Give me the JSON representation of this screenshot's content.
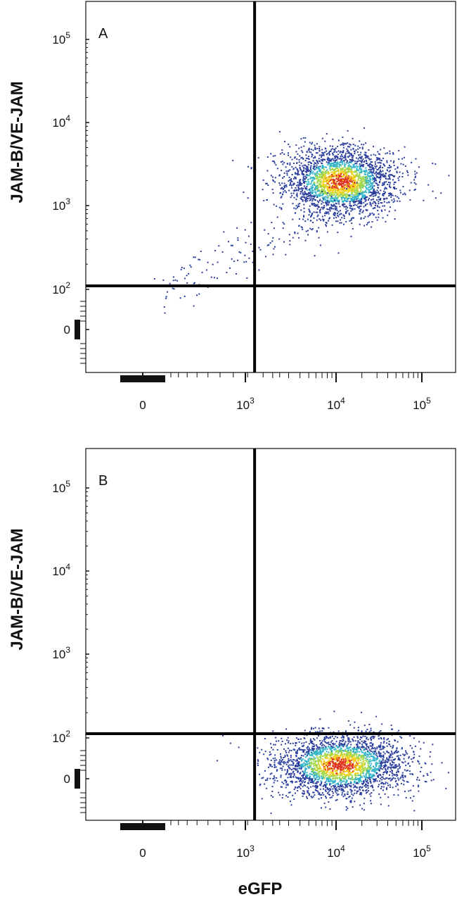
{
  "chart_data": [
    {
      "type": "scatter",
      "panel_label": "A",
      "xlabel": "",
      "ylabel": "JAM-B/VE-JAM",
      "x_scale": "biexponential",
      "y_scale": "biexponential",
      "x_ticks": [
        {
          "value": 0,
          "base": "0",
          "exp": ""
        },
        {
          "value": 1000,
          "base": "10",
          "exp": "3"
        },
        {
          "value": 10000,
          "base": "10",
          "exp": "4"
        },
        {
          "value": 100000,
          "base": "10",
          "exp": "5"
        }
      ],
      "y_ticks": [
        {
          "value": 0,
          "base": "0",
          "exp": ""
        },
        {
          "value": 100,
          "base": "10",
          "exp": "2"
        },
        {
          "value": 1000,
          "base": "10",
          "exp": "3"
        },
        {
          "value": 10000,
          "base": "10",
          "exp": "4"
        },
        {
          "value": 100000,
          "base": "10",
          "exp": "5"
        }
      ],
      "quadrant_gate": {
        "x": 1100,
        "y": 120
      },
      "populations": [
        {
          "center_x": 12000,
          "center_y": 2000,
          "spread_x_decades": 0.32,
          "spread_y_decades": 0.2,
          "density_color_scale": "blue-green-yellow-red"
        },
        {
          "center_x": 300,
          "center_y": 200,
          "spread_x_decades": 0.35,
          "spread_y_decades": 0.3,
          "note_color": "sparse blue"
        }
      ]
    },
    {
      "type": "scatter",
      "panel_label": "B",
      "xlabel": "eGFP",
      "ylabel": "JAM-B/VE-JAM",
      "x_scale": "biexponential",
      "y_scale": "biexponential",
      "x_ticks": [
        {
          "value": 0,
          "base": "0",
          "exp": ""
        },
        {
          "value": 1000,
          "base": "10",
          "exp": "3"
        },
        {
          "value": 10000,
          "base": "10",
          "exp": "4"
        },
        {
          "value": 100000,
          "base": "10",
          "exp": "5"
        }
      ],
      "y_ticks": [
        {
          "value": 0,
          "base": "0",
          "exp": ""
        },
        {
          "value": 100,
          "base": "10",
          "exp": "2"
        },
        {
          "value": 1000,
          "base": "10",
          "exp": "3"
        },
        {
          "value": 10000,
          "base": "10",
          "exp": "4"
        },
        {
          "value": 100000,
          "base": "10",
          "exp": "5"
        }
      ],
      "quadrant_gate": {
        "x": 1100,
        "y": 110
      },
      "populations": [
        {
          "center_x": 12000,
          "center_y": 35,
          "spread_x_decades": 0.38,
          "spread_y_decades": 0.18,
          "density_color_scale": "blue-green-yellow-red"
        }
      ]
    }
  ],
  "colors": {
    "axis": "#111111",
    "gate": "#000000",
    "density_low": "#2a3d9c",
    "density_mid": "#30b4c8",
    "density_midhigh": "#9ed64a",
    "density_high": "#f2d21b",
    "density_peak": "#e0301c"
  }
}
